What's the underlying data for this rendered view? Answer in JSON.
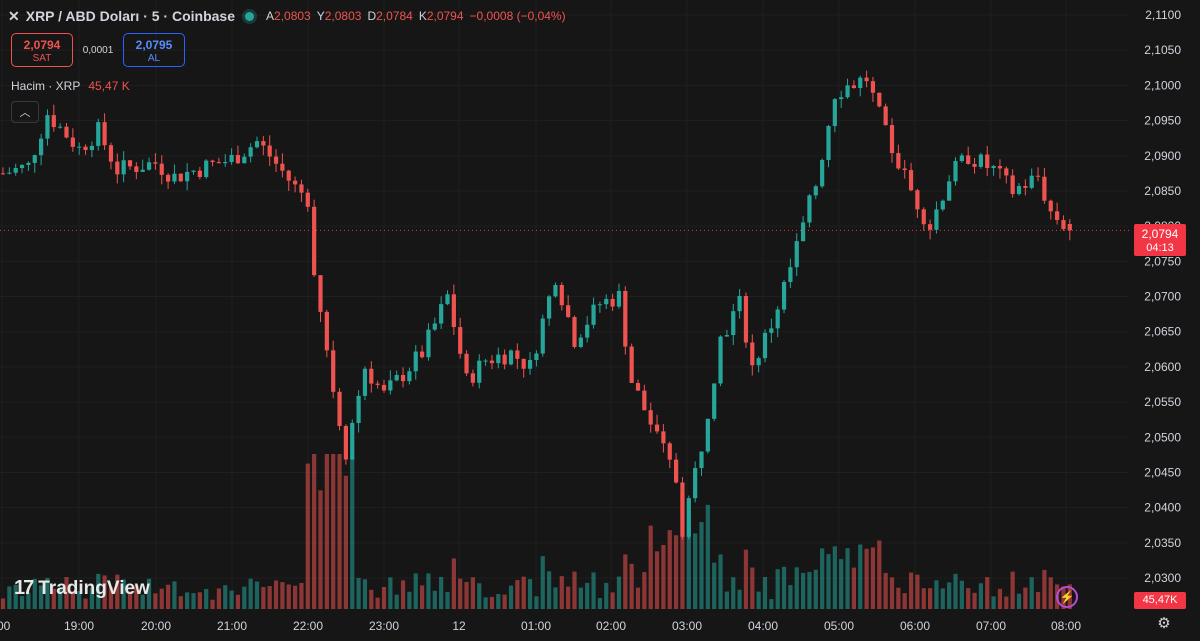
{
  "header": {
    "close_glyph": "✕",
    "symbol_title": "XRP / ABD Doları · 5 · Coinbase",
    "ohlc": [
      {
        "key": "A",
        "value": "2,0803"
      },
      {
        "key": "Y",
        "value": "2,0803"
      },
      {
        "key": "D",
        "value": "2,0784"
      },
      {
        "key": "K",
        "value": "2,0794"
      }
    ],
    "change": "−0,0008 (−0,04%)",
    "status_color": "#26a69a"
  },
  "trade": {
    "sell_price": "2,0794",
    "sell_label": "SAT",
    "spread": "0,0001",
    "buy_price": "2,0795",
    "buy_label": "AL"
  },
  "volume_legend": {
    "label": "Hacim · XRP",
    "value": "45,47 K"
  },
  "collapse_icon": "chevron-up-icon",
  "logo": {
    "mark": "17",
    "name": "TradingView"
  },
  "price_axis": {
    "current_price": "2,0794",
    "countdown": "04:13",
    "volume_value": "45,47K"
  },
  "colors": {
    "up": "#26a69a",
    "down": "#ef5350",
    "background": "#161616",
    "tag": "#f23645"
  },
  "chart_data": {
    "type": "candlestick",
    "symbol": "XRP / ABD Doları",
    "timeframe": "5",
    "exchange": "Coinbase",
    "y_axis": {
      "ticks": [
        "2,1100",
        "2,1050",
        "2,1000",
        "2,0950",
        "2,0900",
        "2,0850",
        "2,0800",
        "2,0750",
        "2,0700",
        "2,0650",
        "2,0600",
        "2,0550",
        "2,0500",
        "2,0450",
        "2,0400",
        "2,0350",
        "2,0300"
      ],
      "range": [
        2.0285,
        2.1125
      ]
    },
    "x_axis": {
      "ticks": [
        ":00",
        "19:00",
        "20:00",
        "21:00",
        "22:00",
        "23:00",
        "12",
        "01:00",
        "02:00",
        "03:00",
        "04:00",
        "05:00",
        "06:00",
        "07:00",
        "08:00"
      ]
    },
    "ohlc_anchors": [
      {
        "time": "18:00",
        "close": 2.0875
      },
      {
        "time": "18:20",
        "close": 2.0885
      },
      {
        "time": "18:35",
        "close": 2.096
      },
      {
        "time": "18:50",
        "close": 2.093
      },
      {
        "time": "19:00",
        "close": 2.091
      },
      {
        "time": "19:15",
        "close": 2.0935
      },
      {
        "time": "19:30",
        "close": 2.088
      },
      {
        "time": "20:00",
        "close": 2.089
      },
      {
        "time": "20:15",
        "close": 2.087
      },
      {
        "time": "20:40",
        "close": 2.0885
      },
      {
        "time": "21:00",
        "close": 2.0895
      },
      {
        "time": "21:20",
        "close": 2.092
      },
      {
        "time": "21:30",
        "close": 2.09
      },
      {
        "time": "21:50",
        "close": 2.0855
      },
      {
        "time": "22:00",
        "close": 2.084
      },
      {
        "time": "22:05",
        "close": 2.074
      },
      {
        "time": "22:20",
        "close": 2.057
      },
      {
        "time": "22:30",
        "close": 2.048
      },
      {
        "time": "22:45",
        "close": 2.06
      },
      {
        "time": "23:00",
        "close": 2.056
      },
      {
        "time": "23:15",
        "close": 2.059
      },
      {
        "time": "23:30",
        "close": 2.062
      },
      {
        "time": "23:50",
        "close": 2.07
      },
      {
        "time": "00:05",
        "close": 2.058
      },
      {
        "time": "00:20",
        "close": 2.061
      },
      {
        "time": "00:40",
        "close": 2.062
      },
      {
        "time": "00:55",
        "close": 2.06
      },
      {
        "time": "01:15",
        "close": 2.073
      },
      {
        "time": "01:30",
        "close": 2.064
      },
      {
        "time": "01:50",
        "close": 2.069
      },
      {
        "time": "02:05",
        "close": 2.07
      },
      {
        "time": "02:15",
        "close": 2.058
      },
      {
        "time": "02:35",
        "close": 2.05
      },
      {
        "time": "02:50",
        "close": 2.044
      },
      {
        "time": "02:55",
        "close": 2.037
      },
      {
        "time": "03:10",
        "close": 2.049
      },
      {
        "time": "03:25",
        "close": 2.064
      },
      {
        "time": "03:40",
        "close": 2.069
      },
      {
        "time": "03:50",
        "close": 2.06
      },
      {
        "time": "04:05",
        "close": 2.066
      },
      {
        "time": "04:20",
        "close": 2.074
      },
      {
        "time": "04:40",
        "close": 2.086
      },
      {
        "time": "04:55",
        "close": 2.099
      },
      {
        "time": "05:05",
        "close": 2.1
      },
      {
        "time": "05:20",
        "close": 2.101
      },
      {
        "time": "05:35",
        "close": 2.093
      },
      {
        "time": "05:55",
        "close": 2.085
      },
      {
        "time": "06:10",
        "close": 2.08
      },
      {
        "time": "06:25",
        "close": 2.087
      },
      {
        "time": "06:40",
        "close": 2.09
      },
      {
        "time": "07:00",
        "close": 2.088
      },
      {
        "time": "07:15",
        "close": 2.085
      },
      {
        "time": "07:35",
        "close": 2.087
      },
      {
        "time": "07:45",
        "close": 2.082
      },
      {
        "time": "08:00",
        "close": 2.0794
      }
    ],
    "last_bar": {
      "open": 2.0803,
      "high": 2.0803,
      "low": 2.0784,
      "close": 2.0794
    },
    "volume": {
      "label": "Hacim · XRP",
      "last": "45,47K"
    }
  }
}
